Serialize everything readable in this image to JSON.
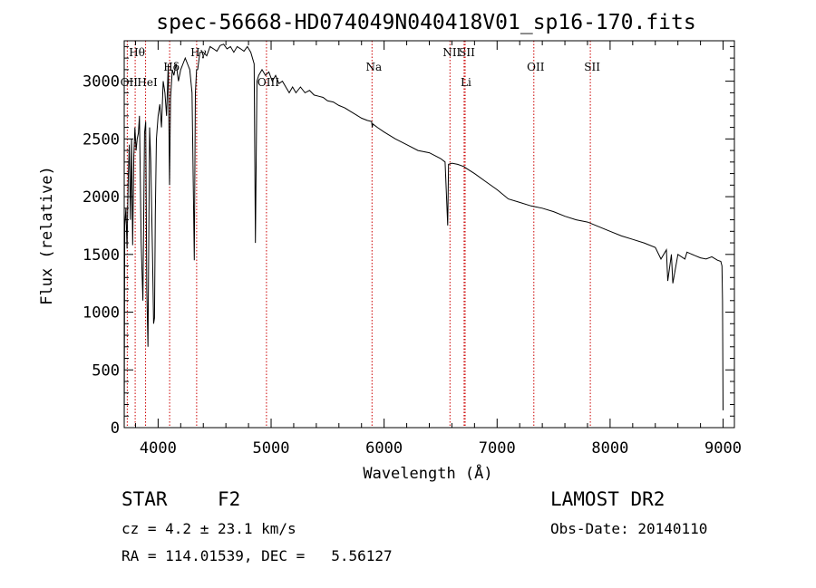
{
  "chart_data": {
    "type": "line",
    "title": "spec-56668-HD074049N040418V01_sp16-170.fits",
    "xlabel": "Wavelength (Å)",
    "ylabel": "Flux (relative)",
    "xlim": [
      3700,
      9100
    ],
    "ylim": [
      0,
      3350
    ],
    "xticks": [
      4000,
      5000,
      6000,
      7000,
      8000,
      9000
    ],
    "yticks": [
      0,
      500,
      1000,
      1500,
      2000,
      2500,
      3000
    ],
    "series": [
      {
        "name": "flux",
        "x": [
          3700,
          3705,
          3715,
          3725,
          3735,
          3745,
          3755,
          3765,
          3775,
          3785,
          3795,
          3805,
          3815,
          3825,
          3835,
          3850,
          3865,
          3880,
          3890,
          3900,
          3910,
          3925,
          3935,
          3950,
          3960,
          3968,
          3975,
          3985,
          4000,
          4015,
          4030,
          4045,
          4060,
          4075,
          4090,
          4101,
          4110,
          4125,
          4140,
          4160,
          4180,
          4200,
          4220,
          4240,
          4260,
          4280,
          4300,
          4320,
          4330,
          4340,
          4350,
          4370,
          4400,
          4430,
          4460,
          4490,
          4520,
          4550,
          4580,
          4610,
          4640,
          4670,
          4700,
          4730,
          4760,
          4790,
          4820,
          4850,
          4861,
          4875,
          4890,
          4920,
          4950,
          4980,
          5010,
          5040,
          5070,
          5100,
          5130,
          5160,
          5190,
          5220,
          5260,
          5300,
          5340,
          5380,
          5420,
          5460,
          5500,
          5550,
          5600,
          5650,
          5700,
          5750,
          5800,
          5850,
          5890,
          5895,
          5900,
          5940,
          6000,
          6100,
          6200,
          6300,
          6400,
          6500,
          6540,
          6563,
          6570,
          6600,
          6650,
          6708,
          6720,
          6800,
          6900,
          7000,
          7100,
          7200,
          7300,
          7400,
          7500,
          7600,
          7700,
          7800,
          7900,
          8000,
          8100,
          8200,
          8300,
          8400,
          8450,
          8498,
          8510,
          8542,
          8555,
          8600,
          8662,
          8680,
          8750,
          8800,
          8850,
          8900,
          8950,
          8980,
          8990,
          8995,
          9000
        ],
        "values": [
          0,
          1750,
          1900,
          1550,
          2150,
          2450,
          1800,
          2500,
          1580,
          2350,
          2600,
          2400,
          2500,
          2550,
          2700,
          1600,
          1100,
          2550,
          2650,
          1200,
          700,
          2600,
          2300,
          1500,
          900,
          950,
          1850,
          2500,
          2700,
          2800,
          2600,
          3000,
          2900,
          2700,
          3150,
          2100,
          2850,
          3100,
          3050,
          3150,
          3000,
          3100,
          3150,
          3200,
          3150,
          3100,
          2900,
          1450,
          2900,
          3100,
          3100,
          3250,
          3250,
          3220,
          3300,
          3280,
          3260,
          3310,
          3320,
          3280,
          3300,
          3250,
          3300,
          3280,
          3260,
          3300,
          3250,
          3150,
          1600,
          3000,
          3050,
          3100,
          3050,
          3080,
          3000,
          3050,
          2980,
          3000,
          2950,
          2900,
          2950,
          2900,
          2950,
          2900,
          2920,
          2880,
          2870,
          2860,
          2830,
          2820,
          2790,
          2770,
          2740,
          2710,
          2680,
          2660,
          2650,
          2600,
          2630,
          2600,
          2560,
          2500,
          2450,
          2400,
          2380,
          2330,
          2300,
          1750,
          2280,
          2290,
          2280,
          2260,
          2250,
          2200,
          2130,
          2060,
          1980,
          1950,
          1920,
          1900,
          1870,
          1830,
          1800,
          1780,
          1740,
          1700,
          1660,
          1630,
          1600,
          1560,
          1460,
          1540,
          1270,
          1500,
          1250,
          1500,
          1460,
          1520,
          1490,
          1470,
          1460,
          1480,
          1450,
          1440,
          1400,
          1100,
          150
        ]
      }
    ],
    "reference_lines": [
      {
        "label": "Hθ",
        "x": 3797,
        "label_row": "top"
      },
      {
        "label": "OII",
        "x": 3727,
        "label_row": "bottom"
      },
      {
        "label": "HeI",
        "x": 3889,
        "label_row": "bottom"
      },
      {
        "label": "Hδ",
        "x": 4102,
        "label_row": "middle"
      },
      {
        "label": "Hγ",
        "x": 4341,
        "label_row": "top"
      },
      {
        "label": "OIII",
        "x": 4959,
        "label_row": "bottom"
      },
      {
        "label": "Na",
        "x": 5893,
        "label_row": "middle"
      },
      {
        "label": "NII",
        "x": 6583,
        "label_row": "top"
      },
      {
        "label": "SII",
        "x": 6717,
        "label_row": "top"
      },
      {
        "label": "Li",
        "x": 6708,
        "label_row": "bottom"
      },
      {
        "label": "OII",
        "x": 7325,
        "label_row": "middle"
      },
      {
        "label": "SII",
        "x": 7825,
        "label_row": "middle"
      }
    ]
  },
  "info": {
    "class": "STAR",
    "subclass": "F2",
    "survey": "LAMOST DR2",
    "cz": "cz = 4.2 ± 23.1 km/s",
    "obs_date": "Obs-Date: 20140110",
    "radec": "RA = 114.01539, DEC =   5.56127"
  },
  "colors": {
    "spectrum": "#000000",
    "reference_line": "#cc0000",
    "axes": "#000000"
  }
}
